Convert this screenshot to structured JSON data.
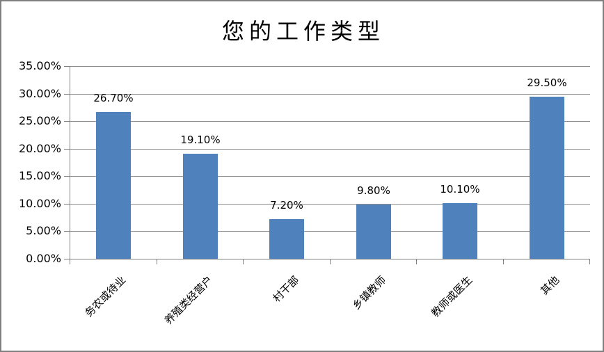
{
  "chart_data": {
    "type": "bar",
    "title": "您的工作类型",
    "categories": [
      "务农或待业",
      "养殖类经营户",
      "村干部",
      "乡镇教师",
      "教师或医生",
      "其他"
    ],
    "values": [
      26.7,
      19.1,
      7.2,
      9.8,
      10.1,
      29.5
    ],
    "value_labels": [
      "26.70%",
      "19.10%",
      "7.20%",
      "9.80%",
      "10.10%",
      "29.50%"
    ],
    "y_tick_labels": [
      "35.00%",
      "30.00%",
      "25.00%",
      "20.00%",
      "15.00%",
      "10.00%",
      "5.00%",
      "0.00%"
    ],
    "ylim": [
      0,
      35
    ],
    "ytick_step": 5,
    "xlabel": "",
    "ylabel": "",
    "grid": true,
    "legend_position": "none",
    "bar_color": "#4f81bd",
    "gridline_color": "#8c8c8c",
    "axis_color": "#808080",
    "text_color": "#000000"
  }
}
